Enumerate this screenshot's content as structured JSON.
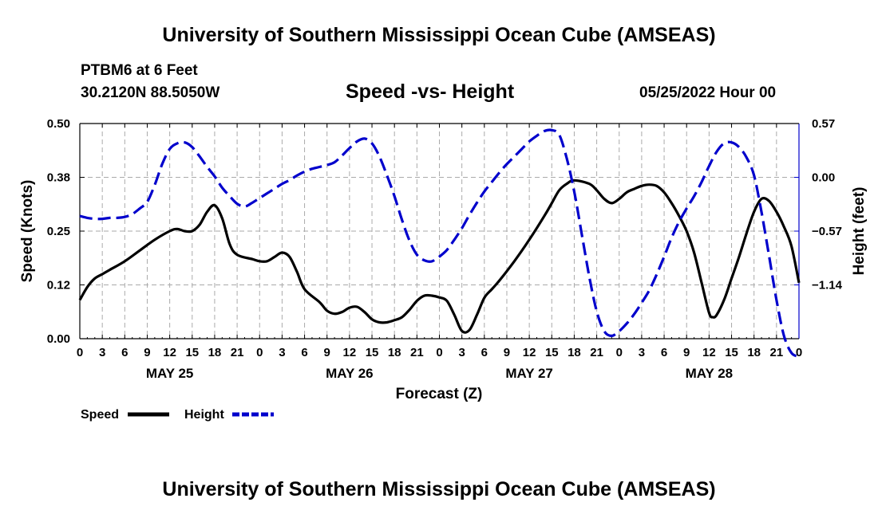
{
  "header": {
    "title_top": "University of Southern Mississippi Ocean Cube (AMSEAS)",
    "station": "PTBM6 at 6 Feet",
    "coords": "30.2120N  88.5050W",
    "subtitle": "Speed -vs- Height",
    "datetime": "05/25/2022 Hour 00",
    "title_bottom": "University of Southern Mississippi Ocean Cube (AMSEAS)"
  },
  "chart_data": {
    "type": "line",
    "title": "Speed -vs- Height",
    "xlabel": "Forecast (Z)",
    "ylabel_left": "Speed (Knots)",
    "ylabel_right": "Height (feet)",
    "x_range_hours": [
      0,
      96
    ],
    "x_tick_labels": [
      "0",
      "3",
      "6",
      "9",
      "12",
      "15",
      "18",
      "21",
      "0",
      "3",
      "6",
      "9",
      "12",
      "15",
      "18",
      "21",
      "0",
      "3",
      "6",
      "9",
      "12",
      "15",
      "18",
      "21",
      "0",
      "3",
      "6",
      "9",
      "12",
      "15",
      "18",
      "21",
      "0"
    ],
    "day_labels": [
      {
        "label": "MAY 25",
        "hour": 12
      },
      {
        "label": "MAY 26",
        "hour": 36
      },
      {
        "label": "MAY 27",
        "hour": 60
      },
      {
        "label": "MAY 28",
        "hour": 84
      }
    ],
    "left_axis": {
      "range": [
        0,
        0.5
      ],
      "ticks": [
        0,
        0.125,
        0.25,
        0.375,
        0.5
      ],
      "tick_labels": [
        "0.00",
        "0.12",
        "0.25",
        "0.38",
        "0.50"
      ]
    },
    "right_axis": {
      "range": [
        -1.71,
        0.57
      ],
      "ticks": [
        -1.14,
        -0.57,
        0.0,
        0.57
      ],
      "tick_labels": [
        "−1.14",
        "−0.57",
        "0.00",
        "0.57"
      ]
    },
    "grid": true,
    "series": [
      {
        "name": "Speed",
        "axis": "left",
        "color": "#000000",
        "dash": "solid",
        "points": [
          [
            0,
            0.09
          ],
          [
            1,
            0.12
          ],
          [
            2,
            0.14
          ],
          [
            3,
            0.15
          ],
          [
            4,
            0.16
          ],
          [
            6,
            0.18
          ],
          [
            8,
            0.205
          ],
          [
            10,
            0.23
          ],
          [
            12,
            0.25
          ],
          [
            13,
            0.255
          ],
          [
            14,
            0.25
          ],
          [
            15,
            0.25
          ],
          [
            16,
            0.265
          ],
          [
            17,
            0.295
          ],
          [
            18,
            0.31
          ],
          [
            19,
            0.28
          ],
          [
            20,
            0.22
          ],
          [
            21,
            0.195
          ],
          [
            23,
            0.185
          ],
          [
            24,
            0.18
          ],
          [
            25,
            0.18
          ],
          [
            26,
            0.19
          ],
          [
            27,
            0.2
          ],
          [
            28,
            0.19
          ],
          [
            29,
            0.155
          ],
          [
            30,
            0.115
          ],
          [
            32,
            0.085
          ],
          [
            33,
            0.065
          ],
          [
            34,
            0.058
          ],
          [
            35,
            0.062
          ],
          [
            36,
            0.072
          ],
          [
            37,
            0.074
          ],
          [
            38,
            0.062
          ],
          [
            39,
            0.045
          ],
          [
            40,
            0.038
          ],
          [
            41,
            0.038
          ],
          [
            42,
            0.043
          ],
          [
            43,
            0.05
          ],
          [
            44,
            0.067
          ],
          [
            45,
            0.088
          ],
          [
            46,
            0.1
          ],
          [
            47,
            0.1
          ],
          [
            48,
            0.096
          ],
          [
            49,
            0.088
          ],
          [
            50,
            0.055
          ],
          [
            51,
            0.018
          ],
          [
            52,
            0.02
          ],
          [
            53,
            0.055
          ],
          [
            54,
            0.095
          ],
          [
            55,
            0.115
          ],
          [
            56,
            0.135
          ],
          [
            58,
            0.18
          ],
          [
            60,
            0.23
          ],
          [
            62,
            0.285
          ],
          [
            63,
            0.315
          ],
          [
            64,
            0.345
          ],
          [
            65,
            0.36
          ],
          [
            66,
            0.368
          ],
          [
            68,
            0.36
          ],
          [
            69,
            0.345
          ],
          [
            70,
            0.325
          ],
          [
            71,
            0.315
          ],
          [
            72,
            0.325
          ],
          [
            73,
            0.34
          ],
          [
            74,
            0.348
          ],
          [
            75,
            0.355
          ],
          [
            76,
            0.358
          ],
          [
            77,
            0.355
          ],
          [
            78,
            0.34
          ],
          [
            79,
            0.315
          ],
          [
            80,
            0.285
          ],
          [
            81,
            0.25
          ],
          [
            82,
            0.2
          ],
          [
            83,
            0.13
          ],
          [
            84,
            0.06
          ],
          [
            84.5,
            0.05
          ],
          [
            85,
            0.055
          ],
          [
            86,
            0.09
          ],
          [
            87,
            0.14
          ],
          [
            88,
            0.19
          ],
          [
            89,
            0.245
          ],
          [
            90,
            0.295
          ],
          [
            91,
            0.325
          ],
          [
            92,
            0.32
          ],
          [
            93,
            0.295
          ],
          [
            94,
            0.26
          ],
          [
            95,
            0.215
          ],
          [
            96,
            0.13
          ]
        ]
      },
      {
        "name": "Height",
        "axis": "right",
        "color": "#0000cc",
        "dash": "dashed",
        "points": [
          [
            0,
            -0.41
          ],
          [
            1,
            -0.43
          ],
          [
            2,
            -0.44
          ],
          [
            3,
            -0.44
          ],
          [
            4,
            -0.43
          ],
          [
            5,
            -0.43
          ],
          [
            6,
            -0.42
          ],
          [
            7,
            -0.39
          ],
          [
            8,
            -0.33
          ],
          [
            9,
            -0.26
          ],
          [
            10,
            -0.08
          ],
          [
            11,
            0.14
          ],
          [
            12,
            0.3
          ],
          [
            13,
            0.36
          ],
          [
            14,
            0.37
          ],
          [
            15,
            0.32
          ],
          [
            16,
            0.22
          ],
          [
            17,
            0.11
          ],
          [
            18,
            0.01
          ],
          [
            19,
            -0.11
          ],
          [
            20,
            -0.2
          ],
          [
            21,
            -0.28
          ],
          [
            22,
            -0.31
          ],
          [
            23,
            -0.27
          ],
          [
            24,
            -0.22
          ],
          [
            25,
            -0.17
          ],
          [
            26,
            -0.12
          ],
          [
            27,
            -0.07
          ],
          [
            28,
            -0.03
          ],
          [
            29,
            0.02
          ],
          [
            30,
            0.06
          ],
          [
            31,
            0.09
          ],
          [
            32,
            0.11
          ],
          [
            33,
            0.13
          ],
          [
            34,
            0.16
          ],
          [
            35,
            0.23
          ],
          [
            36,
            0.31
          ],
          [
            37,
            0.38
          ],
          [
            38,
            0.41
          ],
          [
            39,
            0.36
          ],
          [
            40,
            0.22
          ],
          [
            41,
            0.02
          ],
          [
            42,
            -0.2
          ],
          [
            43,
            -0.45
          ],
          [
            44,
            -0.67
          ],
          [
            45,
            -0.82
          ],
          [
            46,
            -0.88
          ],
          [
            47,
            -0.89
          ],
          [
            48,
            -0.84
          ],
          [
            49,
            -0.77
          ],
          [
            50,
            -0.66
          ],
          [
            51,
            -0.54
          ],
          [
            52,
            -0.4
          ],
          [
            53,
            -0.27
          ],
          [
            54,
            -0.15
          ],
          [
            55,
            -0.05
          ],
          [
            56,
            0.05
          ],
          [
            57,
            0.14
          ],
          [
            58,
            0.22
          ],
          [
            59,
            0.3
          ],
          [
            60,
            0.38
          ],
          [
            61,
            0.44
          ],
          [
            62,
            0.49
          ],
          [
            63,
            0.5
          ],
          [
            64,
            0.45
          ],
          [
            65,
            0.2
          ],
          [
            66,
            -0.15
          ],
          [
            67,
            -0.6
          ],
          [
            68,
            -1.05
          ],
          [
            69,
            -1.42
          ],
          [
            70,
            -1.63
          ],
          [
            71,
            -1.68
          ],
          [
            72,
            -1.63
          ],
          [
            73,
            -1.55
          ],
          [
            74,
            -1.45
          ],
          [
            75,
            -1.33
          ],
          [
            76,
            -1.2
          ],
          [
            77,
            -1.03
          ],
          [
            78,
            -0.84
          ],
          [
            79,
            -0.64
          ],
          [
            80,
            -0.47
          ],
          [
            81,
            -0.33
          ],
          [
            82,
            -0.2
          ],
          [
            83,
            -0.05
          ],
          [
            84,
            0.12
          ],
          [
            85,
            0.27
          ],
          [
            86,
            0.36
          ],
          [
            87,
            0.37
          ],
          [
            88,
            0.32
          ],
          [
            89,
            0.21
          ],
          [
            90,
            0.02
          ],
          [
            91,
            -0.37
          ],
          [
            92,
            -0.83
          ],
          [
            93,
            -1.3
          ],
          [
            94,
            -1.68
          ],
          [
            95,
            -1.86
          ],
          [
            96,
            -1.9
          ]
        ]
      }
    ],
    "legend": [
      {
        "label": "Speed",
        "series": "Speed"
      },
      {
        "label": "Height",
        "series": "Height"
      }
    ],
    "legend_position": "bottom-left"
  }
}
